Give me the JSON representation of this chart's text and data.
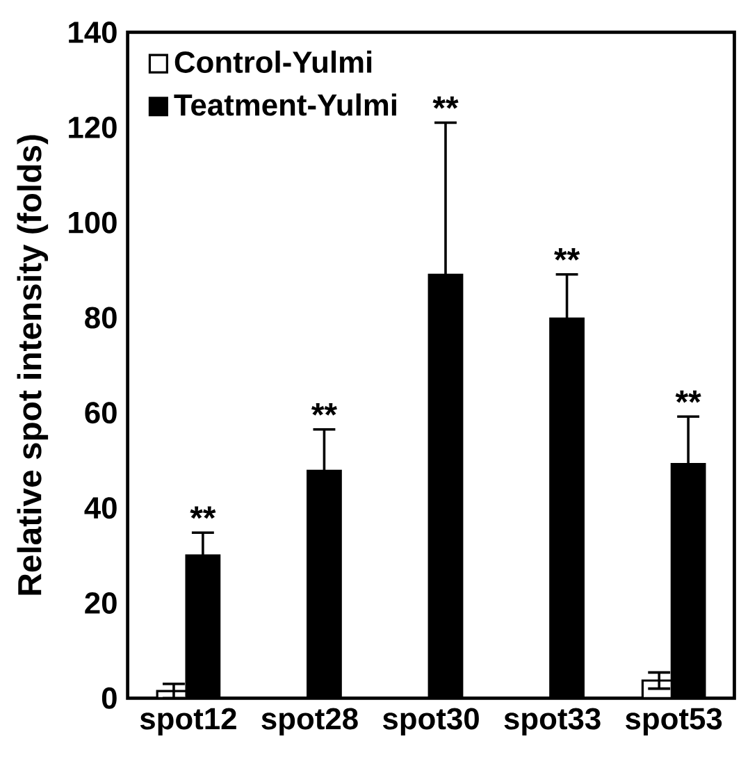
{
  "chart_data": {
    "type": "bar",
    "ylabel": "Relative spot intensity (folds)",
    "categories": [
      "spot12",
      "spot28",
      "spot30",
      "spot33",
      "spot53"
    ],
    "series": [
      {
        "name": "Control-Yulmi",
        "color": "#ffffff",
        "values": [
          1.5,
          null,
          null,
          null,
          3.7
        ],
        "errors": [
          1.5,
          null,
          null,
          null,
          1.7
        ]
      },
      {
        "name": "Teatment-Yulmi",
        "color": "#000000",
        "values": [
          30,
          47.8,
          89,
          79.8,
          49.2
        ],
        "errors": [
          4.8,
          8.7,
          32,
          9.3,
          10
        ]
      }
    ],
    "ylim": [
      0,
      140
    ],
    "yticks": [
      0,
      20,
      40,
      60,
      80,
      100,
      120,
      140
    ],
    "grid": false,
    "legend": "top left",
    "annotations": [
      {
        "text": "**",
        "x": "spot12",
        "y": 34.8
      },
      {
        "text": "**",
        "x": "spot28",
        "y": 56.5
      },
      {
        "text": "**",
        "x": "spot30",
        "y": 121
      },
      {
        "text": "**",
        "x": "spot33",
        "y": 89.1
      },
      {
        "text": "**",
        "x": "spot53",
        "y": 59.2
      }
    ]
  }
}
